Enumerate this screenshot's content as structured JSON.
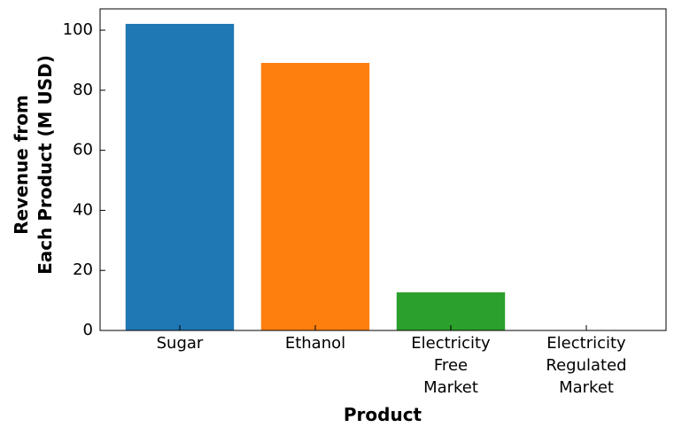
{
  "chart_data": {
    "type": "bar",
    "categories": [
      "Sugar",
      "Ethanol",
      "Electricity\nFree\nMarket",
      "Electricity\nRegulated\nMarket"
    ],
    "values": [
      102.1,
      89.1,
      12.7,
      0
    ],
    "colors": [
      "#1f77b4",
      "#ff7f0e",
      "#2ca02c",
      "#d62728"
    ],
    "xlabel": "Product",
    "ylabel": "Revenue from\nEach Product (M USD)",
    "ylim": [
      0,
      107.1
    ],
    "yticks": [
      0,
      20,
      40,
      60,
      80,
      100
    ]
  }
}
